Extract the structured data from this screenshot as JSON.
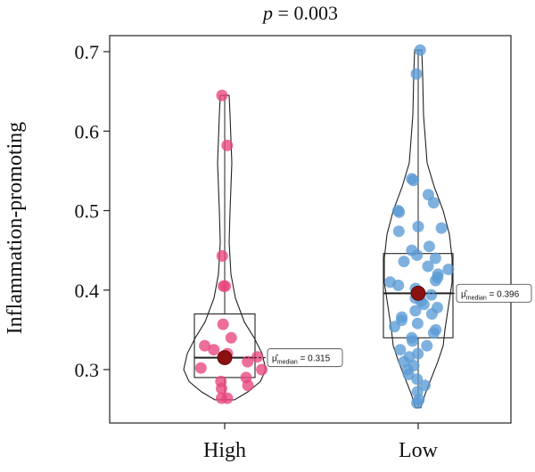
{
  "chart_data": {
    "type": "violin-box-scatter",
    "title_italic": "p",
    "title_rest": " = 0.003",
    "ylabel": "Inflammation-promoting",
    "categories": [
      "High",
      "Low"
    ],
    "ylim": [
      0.25,
      0.715
    ],
    "yticks": [
      0.3,
      0.4,
      0.5,
      0.6,
      0.7
    ],
    "ytick_labels": [
      "0.3",
      "0.4",
      "0.5",
      "0.6",
      "0.7"
    ],
    "grid": false,
    "groups": [
      {
        "name": "High",
        "color": "#e8457f",
        "median_color": "#8b1010",
        "box": {
          "q1": 0.29,
          "median": 0.315,
          "q3": 0.37,
          "min": 0.262,
          "max": 0.645
        },
        "median_label": "0.315",
        "points": [
          0.645,
          0.582,
          0.443,
          0.405,
          0.405,
          0.357,
          0.34,
          0.33,
          0.325,
          0.32,
          0.316,
          0.31,
          0.302,
          0.3,
          0.29,
          0.285,
          0.28,
          0.276,
          0.264,
          0.264
        ]
      },
      {
        "name": "Low",
        "color": "#5b9bd5",
        "median_color": "#8b1010",
        "box": {
          "q1": 0.34,
          "median": 0.396,
          "q3": 0.446,
          "min": 0.252,
          "max": 0.702
        },
        "median_label": "0.396",
        "points": [
          0.702,
          0.672,
          0.54,
          0.538,
          0.52,
          0.51,
          0.5,
          0.498,
          0.48,
          0.478,
          0.474,
          0.455,
          0.45,
          0.444,
          0.44,
          0.436,
          0.43,
          0.426,
          0.42,
          0.416,
          0.412,
          0.41,
          0.406,
          0.402,
          0.398,
          0.394,
          0.39,
          0.386,
          0.382,
          0.378,
          0.374,
          0.37,
          0.366,
          0.362,
          0.358,
          0.354,
          0.35,
          0.346,
          0.34,
          0.336,
          0.33,
          0.325,
          0.32,
          0.316,
          0.31,
          0.305,
          0.3,
          0.294,
          0.288,
          0.28,
          0.272,
          0.262,
          0.258
        ]
      }
    ],
    "annotation_prefix": "μ̂",
    "annotation_sub": "median",
    "annotation_eq": " = "
  }
}
